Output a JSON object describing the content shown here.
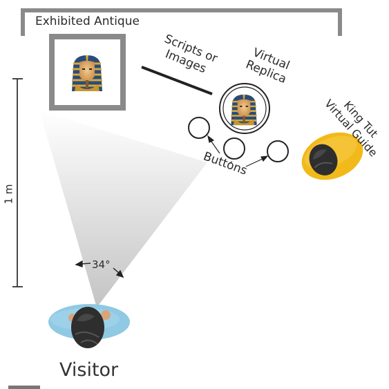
{
  "labels": {
    "exhibited_antique": "Exhibited Antique",
    "scripts_line1": "Scripts or",
    "scripts_line2": "Images",
    "replica_line1": "Virtual",
    "replica_line2": "Replica",
    "guide_line1": "King Tut",
    "guide_line2": "Virtual Guide",
    "buttons": "Buttons",
    "view_angle": "34°",
    "distance": "1 m",
    "visitor": "Visitor"
  },
  "colors": {
    "frame": "#8a8a8a",
    "scale_line": "#333333",
    "view_cone": "#c9c9c9",
    "visitor_body": "#8fc9e3",
    "guide_body": "#f2b91a",
    "hair": "#2e2e2e"
  },
  "icons": [
    "pharaoh-mask-icon",
    "pharaoh-mask-icon",
    "head-icon",
    "head-icon",
    "arrow-icon"
  ]
}
